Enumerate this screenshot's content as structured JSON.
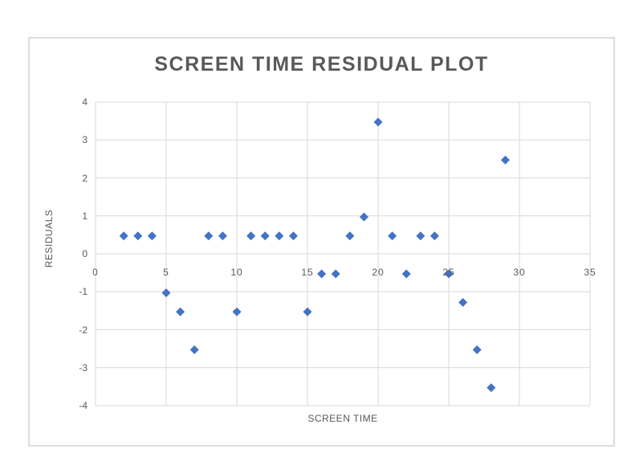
{
  "page": {
    "background": "#ffffff"
  },
  "chart": {
    "title": "SCREEN TIME RESIDUAL PLOT",
    "x_axis_title": "SCREEN TIME",
    "y_axis_title": "RESIDUALS",
    "colors": {
      "marker": "#4472C4",
      "title_text": "#595959",
      "tick_text": "#595959",
      "gridline": "#D9D9D9",
      "frame_border": "#DCDCDC"
    }
  },
  "chart_data": {
    "type": "scatter",
    "title": "SCREEN TIME RESIDUAL PLOT",
    "xlabel": "SCREEN TIME",
    "ylabel": "RESIDUALS",
    "xlim": [
      0,
      35
    ],
    "ylim": [
      -4,
      4
    ],
    "x_ticks": [
      0,
      5,
      10,
      15,
      20,
      25,
      30,
      35
    ],
    "y_ticks": [
      4,
      3,
      2,
      1,
      0,
      -1,
      -2,
      -3,
      -4
    ],
    "grid": true,
    "legend": false,
    "marker": "diamond",
    "marker_color": "#4472C4",
    "points": [
      {
        "x": 2,
        "y": 0.47
      },
      {
        "x": 3,
        "y": 0.47
      },
      {
        "x": 4,
        "y": 0.47
      },
      {
        "x": 5,
        "y": -1.03
      },
      {
        "x": 6,
        "y": -1.53
      },
      {
        "x": 7,
        "y": -2.53
      },
      {
        "x": 8,
        "y": 0.47
      },
      {
        "x": 9,
        "y": 0.47
      },
      {
        "x": 10,
        "y": -1.53
      },
      {
        "x": 11,
        "y": 0.47
      },
      {
        "x": 12,
        "y": 0.47
      },
      {
        "x": 13,
        "y": 0.47
      },
      {
        "x": 14,
        "y": 0.47
      },
      {
        "x": 15,
        "y": -1.53
      },
      {
        "x": 16,
        "y": -0.53
      },
      {
        "x": 17,
        "y": -0.53
      },
      {
        "x": 18,
        "y": 0.47
      },
      {
        "x": 19,
        "y": 0.97
      },
      {
        "x": 20,
        "y": 3.47
      },
      {
        "x": 21,
        "y": 0.47
      },
      {
        "x": 22,
        "y": -0.53
      },
      {
        "x": 23,
        "y": 0.47
      },
      {
        "x": 24,
        "y": 0.47
      },
      {
        "x": 25,
        "y": -0.53
      },
      {
        "x": 26,
        "y": -1.28
      },
      {
        "x": 27,
        "y": -2.53
      },
      {
        "x": 28,
        "y": -3.53
      },
      {
        "x": 29,
        "y": 2.47
      }
    ]
  }
}
